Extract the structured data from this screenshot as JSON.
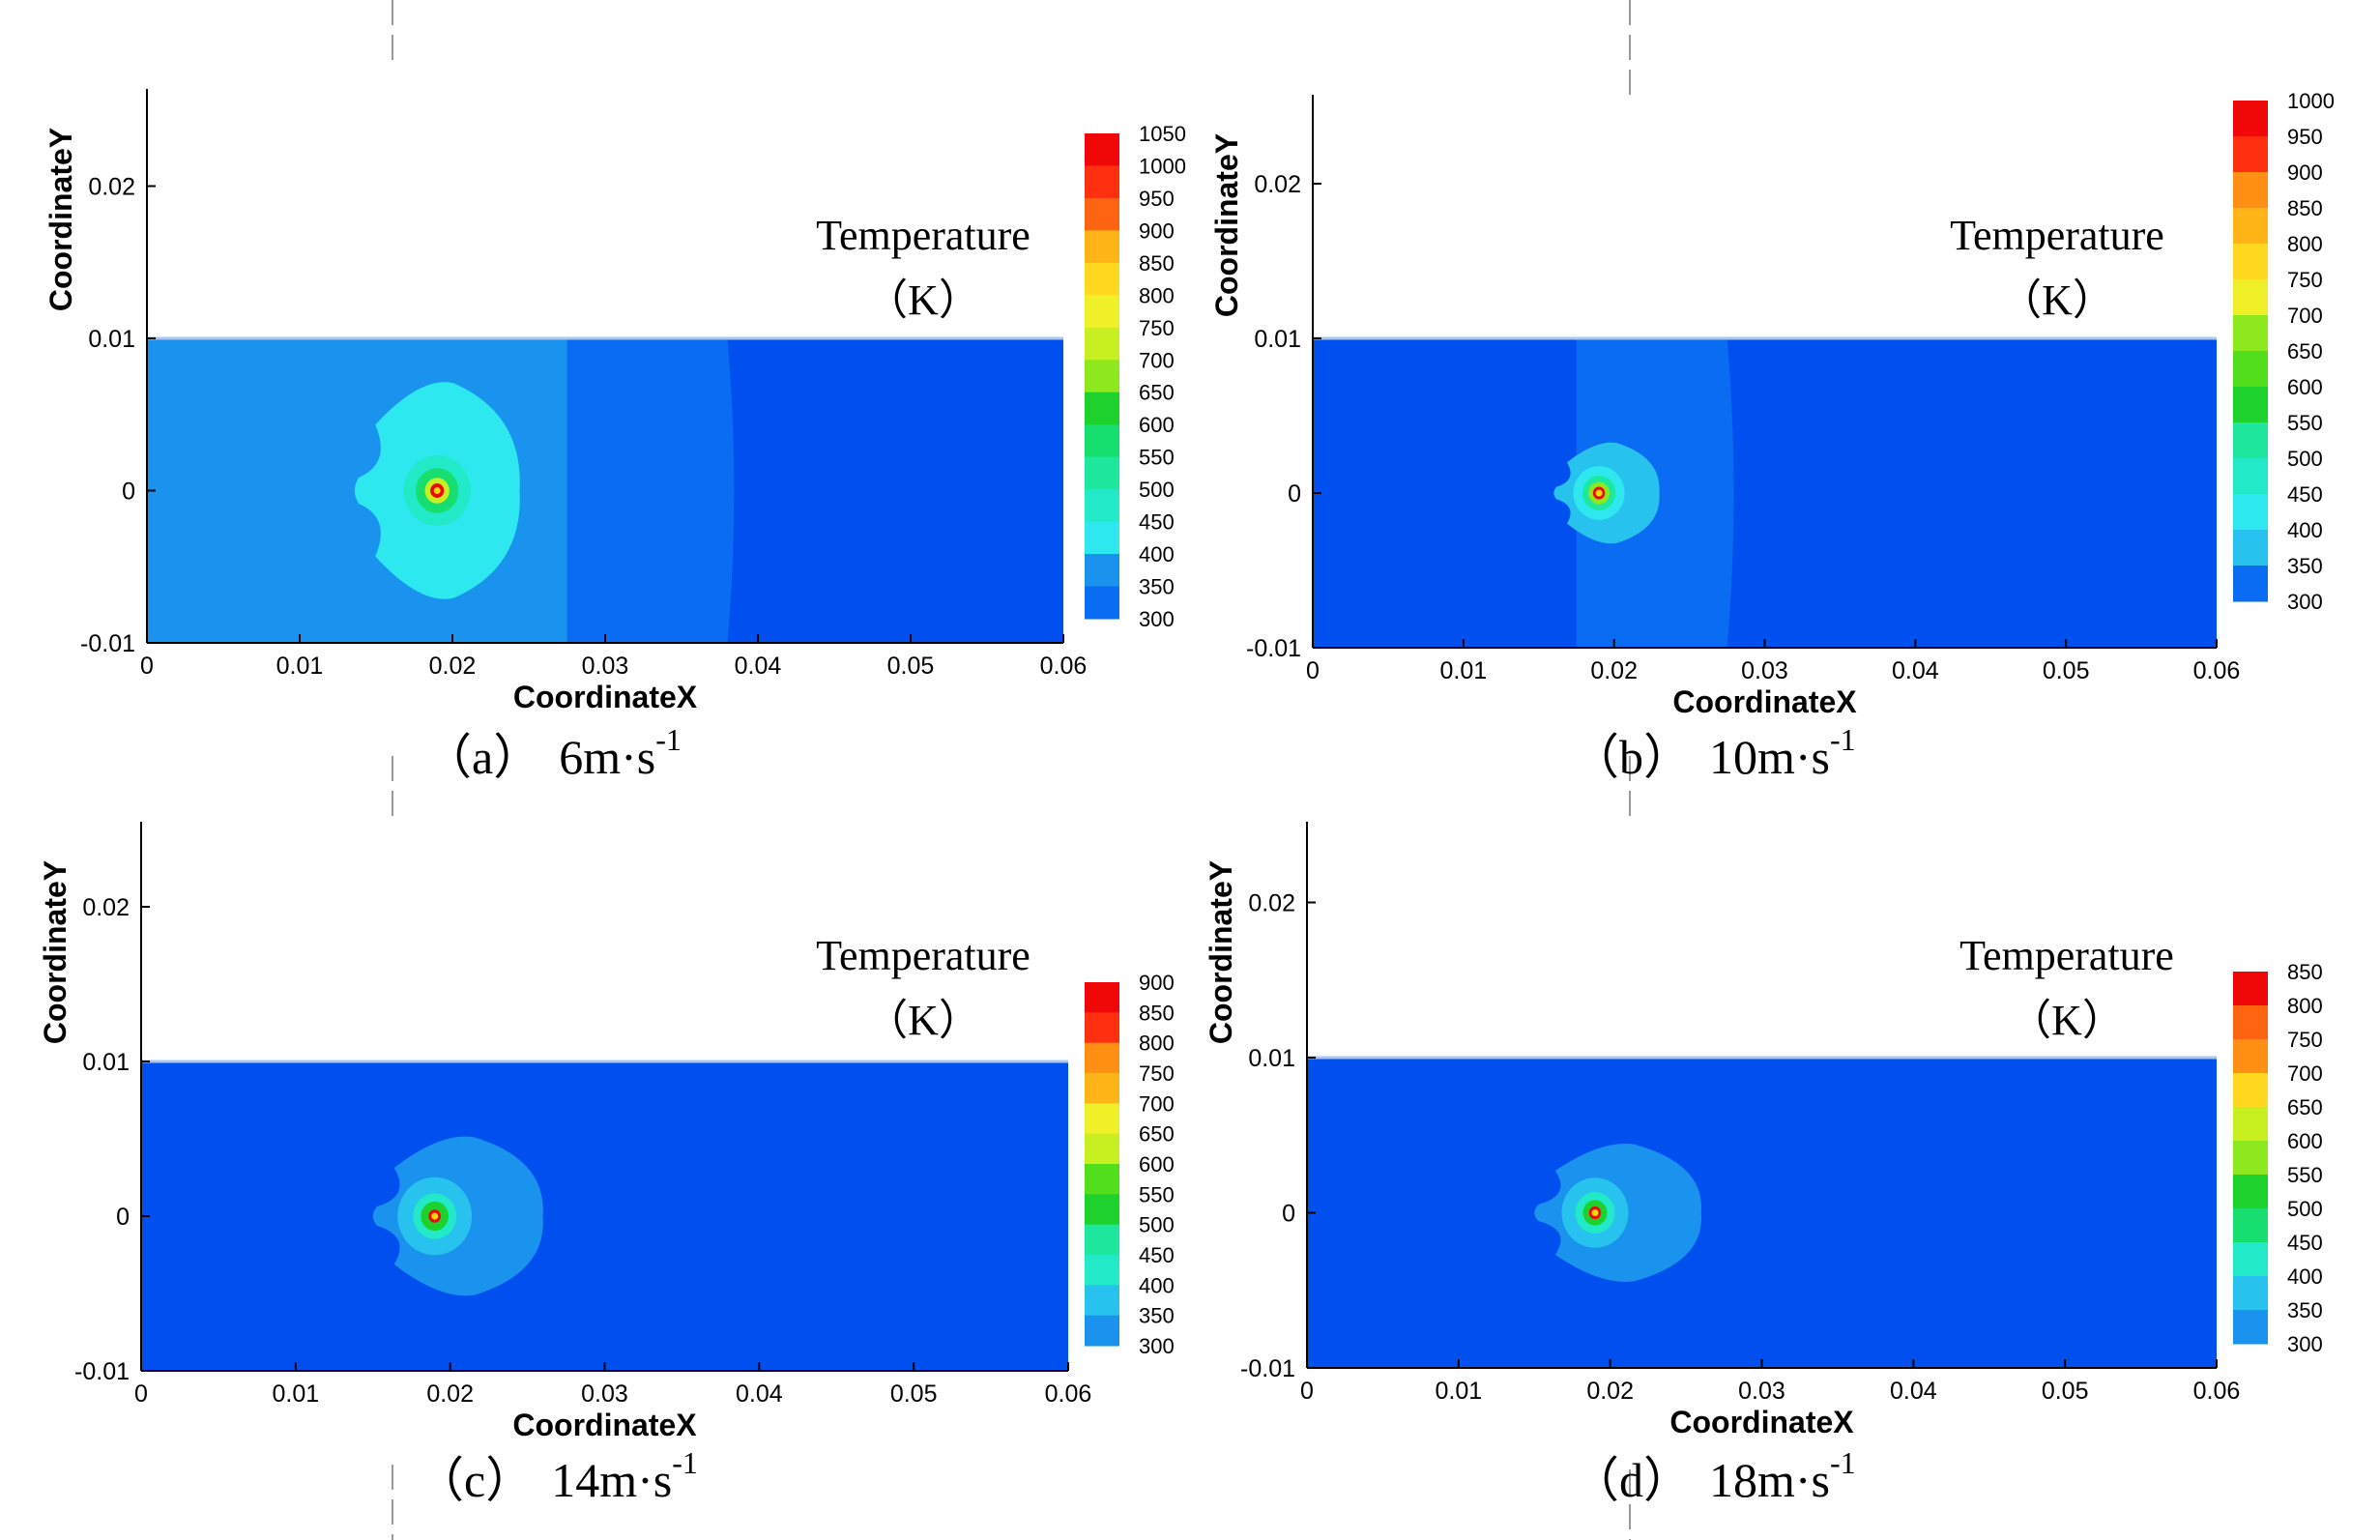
{
  "colors": {
    "scale": [
      "#0050f0",
      "#0a6cf2",
      "#1a93ee",
      "#28c2ef",
      "#2ee8f0",
      "#22eac8",
      "#1ee89e",
      "#16df70",
      "#1ed22e",
      "#52de1a",
      "#8ee81e",
      "#c8f020",
      "#f0f028",
      "#ffd820",
      "#ffb418",
      "#ff9014",
      "#ff6410",
      "#ff3010",
      "#f00808"
    ],
    "axis": "#000000",
    "boundary": "#a8c6f2",
    "hotspot": "#ffd800"
  },
  "chart_data": [
    {
      "type": "heatmap",
      "panel": "a",
      "caption_prefix": "（a）",
      "caption_speed": "6m·s",
      "caption_exponent": "-1",
      "xlabel": "CoordinateX",
      "ylabel": "CoordinateY",
      "xlim": [
        0,
        0.06
      ],
      "ylim": [
        -0.01,
        0.025
      ],
      "domain_y": [
        -0.01,
        0.01
      ],
      "xticks": [
        "0",
        "0.01",
        "0.02",
        "0.03",
        "0.04",
        "0.05",
        "0.06"
      ],
      "yticks": [
        "-0.01",
        "0",
        "0.01",
        "0.02"
      ],
      "legend_title": "Temperature",
      "legend_unit": "（K）",
      "legend_levels": [
        "1050",
        "1000",
        "950",
        "900",
        "850",
        "800",
        "750",
        "700",
        "650",
        "600",
        "550",
        "500",
        "450",
        "400",
        "350",
        "300"
      ],
      "hot_spot": {
        "x": 0.019,
        "y": 0.0
      },
      "base_temperature": 300,
      "contours": [
        {
          "type": "band",
          "x_range": [
            0,
            0.0275
          ],
          "level": "400"
        },
        {
          "type": "band",
          "x_range": [
            0.0275,
            0.038
          ],
          "level": "350"
        },
        {
          "type": "blob",
          "center": [
            0.019,
            0.0
          ],
          "half_width": 0.0054,
          "half_height": 0.0072,
          "level": "450"
        },
        {
          "type": "circle",
          "center": [
            0.019,
            0.0
          ],
          "radius": 0.0022,
          "level": "500"
        },
        {
          "type": "circle",
          "center": [
            0.019,
            0.0
          ],
          "radius": 0.0014,
          "level": "600"
        },
        {
          "type": "circle",
          "center": [
            0.019,
            0.0
          ],
          "radius": 0.0008,
          "level": "750"
        },
        {
          "type": "circle",
          "center": [
            0.019,
            0.0
          ],
          "radius": 0.00045,
          "level": "1050"
        }
      ]
    },
    {
      "type": "heatmap",
      "panel": "b",
      "caption_prefix": "（b）",
      "caption_speed": "10m·s",
      "caption_exponent": "-1",
      "xlabel": "CoordinateX",
      "ylabel": "CoordinateY",
      "xlim": [
        0,
        0.06
      ],
      "ylim": [
        -0.01,
        0.025
      ],
      "domain_y": [
        -0.01,
        0.01
      ],
      "xticks": [
        "0",
        "0.01",
        "0.02",
        "0.03",
        "0.04",
        "0.05",
        "0.06"
      ],
      "yticks": [
        "-0.01",
        "0",
        "0.01",
        "0.02"
      ],
      "legend_title": "Temperature",
      "legend_unit": "（K）",
      "legend_levels": [
        "1000",
        "950",
        "900",
        "850",
        "800",
        "750",
        "700",
        "650",
        "600",
        "550",
        "500",
        "450",
        "400",
        "350",
        "300"
      ],
      "hot_spot": {
        "x": 0.019,
        "y": 0.0
      },
      "base_temperature": 300,
      "contours": [
        {
          "type": "band",
          "x_range": [
            0.0175,
            0.0275
          ],
          "level": "350"
        },
        {
          "type": "blob",
          "center": [
            0.0195,
            0.0
          ],
          "half_width": 0.0035,
          "half_height": 0.0033,
          "level": "400"
        },
        {
          "type": "circle",
          "center": [
            0.019,
            0.0
          ],
          "radius": 0.0017,
          "level": "450"
        },
        {
          "type": "circle",
          "center": [
            0.019,
            0.0
          ],
          "radius": 0.0011,
          "level": "550"
        },
        {
          "type": "circle",
          "center": [
            0.019,
            0.0
          ],
          "radius": 0.0007,
          "level": "700"
        },
        {
          "type": "circle",
          "center": [
            0.019,
            0.0
          ],
          "radius": 0.0004,
          "level": "1000"
        }
      ]
    },
    {
      "type": "heatmap",
      "panel": "c",
      "caption_prefix": "（c）",
      "caption_speed": "14m·s",
      "caption_exponent": "-1",
      "xlabel": "CoordinateX",
      "ylabel": "CoordinateY",
      "xlim": [
        0,
        0.06
      ],
      "ylim": [
        -0.01,
        0.025
      ],
      "domain_y": [
        -0.01,
        0.01
      ],
      "xticks": [
        "0",
        "0.01",
        "0.02",
        "0.03",
        "0.04",
        "0.05",
        "0.06"
      ],
      "yticks": [
        "-0.01",
        "0",
        "0.01",
        "0.02"
      ],
      "legend_title": "Temperature",
      "legend_unit": "（K）",
      "legend_levels": [
        "900",
        "850",
        "800",
        "750",
        "700",
        "650",
        "600",
        "550",
        "500",
        "450",
        "400",
        "350",
        "300"
      ],
      "hot_spot": {
        "x": 0.019,
        "y": 0.0
      },
      "base_temperature": 300,
      "contours": [
        {
          "type": "blob",
          "center": [
            0.0205,
            0.0
          ],
          "half_width": 0.0055,
          "half_height": 0.0052,
          "level": "350"
        },
        {
          "type": "circle",
          "center": [
            0.019,
            0.0
          ],
          "radius": 0.0024,
          "level": "400"
        },
        {
          "type": "circle",
          "center": [
            0.019,
            0.0
          ],
          "radius": 0.0014,
          "level": "450"
        },
        {
          "type": "circle",
          "center": [
            0.019,
            0.0
          ],
          "radius": 0.0009,
          "level": "550"
        },
        {
          "type": "circle",
          "center": [
            0.019,
            0.0
          ],
          "radius": 0.0004,
          "level": "900"
        }
      ]
    },
    {
      "type": "heatmap",
      "panel": "d",
      "caption_prefix": "（d）",
      "caption_speed": "18m·s",
      "caption_exponent": "-1",
      "xlabel": "CoordinateX",
      "ylabel": "CoordinateY",
      "xlim": [
        0,
        0.06
      ],
      "ylim": [
        -0.01,
        0.025
      ],
      "domain_y": [
        -0.01,
        0.01
      ],
      "xticks": [
        "0",
        "0.01",
        "0.02",
        "0.03",
        "0.04",
        "0.05",
        "0.06"
      ],
      "yticks": [
        "-0.01",
        "0",
        "0.01",
        "0.02"
      ],
      "legend_title": "Temperature",
      "legend_unit": "（K）",
      "legend_levels": [
        "850",
        "800",
        "750",
        "700",
        "650",
        "600",
        "550",
        "500",
        "450",
        "400",
        "350",
        "300"
      ],
      "hot_spot": {
        "x": 0.019,
        "y": 0.0
      },
      "base_temperature": 300,
      "contours": [
        {
          "type": "blob",
          "center": [
            0.0205,
            0.0
          ],
          "half_width": 0.0055,
          "half_height": 0.0045,
          "level": "350"
        },
        {
          "type": "circle",
          "center": [
            0.019,
            0.0
          ],
          "radius": 0.0022,
          "level": "400"
        },
        {
          "type": "circle",
          "center": [
            0.019,
            0.0
          ],
          "radius": 0.0013,
          "level": "450"
        },
        {
          "type": "circle",
          "center": [
            0.019,
            0.0
          ],
          "radius": 0.0008,
          "level": "550"
        },
        {
          "type": "circle",
          "center": [
            0.019,
            0.0
          ],
          "radius": 0.0004,
          "level": "850"
        }
      ]
    }
  ]
}
